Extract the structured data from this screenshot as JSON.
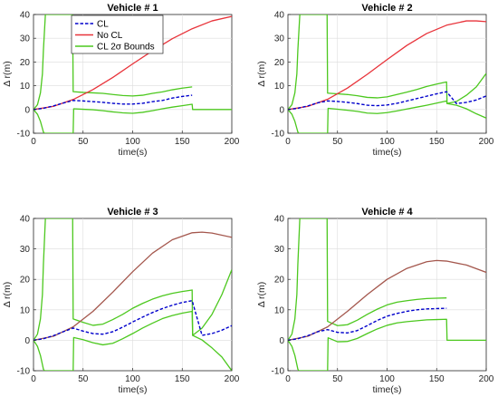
{
  "chart_data": [
    {
      "type": "line",
      "title": "Vehicle # 1",
      "xlabel": "time(s)",
      "ylabel": "Δ r(m)",
      "xlim": [
        0,
        200
      ],
      "ylim": [
        -10,
        40
      ],
      "xticks": [
        0,
        50,
        100,
        150,
        200
      ],
      "yticks": [
        -10,
        0,
        10,
        20,
        30,
        40
      ],
      "grid": true,
      "legend": {
        "placement": "top-left",
        "entries": [
          "CL",
          "No CL",
          "CL 2σ Bounds"
        ]
      },
      "series": [
        {
          "name": "CL",
          "color": "#0000cc",
          "style": "dashed",
          "x": [
            0,
            10,
            20,
            30,
            40,
            50,
            60,
            70,
            80,
            90,
            100,
            110,
            120,
            130,
            140,
            150,
            160
          ],
          "y": [
            0,
            0.5,
            1.5,
            2.7,
            3.8,
            3.6,
            3.3,
            3.0,
            2.6,
            2.3,
            2.3,
            2.6,
            3.3,
            3.8,
            4.8,
            5.5,
            6.0
          ]
        },
        {
          "name": "No CL",
          "color": "#e8333a",
          "style": "solid",
          "x": [
            0,
            20,
            40,
            60,
            80,
            100,
            120,
            140,
            160,
            180,
            200
          ],
          "y": [
            0,
            1.3,
            4.2,
            8.4,
            13.5,
            19.2,
            24.7,
            29.8,
            34.0,
            37.3,
            39.2
          ]
        },
        {
          "name": "CL 2σ Bounds (upper)",
          "color": "#4cc81e",
          "style": "solid",
          "x": [
            0,
            4,
            7,
            9,
            10,
            12,
            20,
            30,
            39,
            39.5,
            40,
            50,
            60,
            70,
            80,
            90,
            100,
            110,
            120,
            130,
            140,
            150,
            160
          ],
          "y": [
            0,
            2,
            7,
            15,
            25,
            40,
            40,
            40,
            40,
            40,
            7.5,
            7.2,
            7.0,
            6.8,
            6.3,
            5.9,
            5.7,
            6.0,
            6.8,
            7.4,
            8.3,
            9.0,
            9.5
          ]
        },
        {
          "name": "CL 2σ Bounds (lower)",
          "color": "#4cc81e",
          "style": "solid",
          "x": [
            0,
            4,
            7,
            9,
            10,
            11,
            40,
            40.5,
            50,
            60,
            70,
            80,
            90,
            100,
            110,
            120,
            130,
            140,
            150,
            160,
            160.5,
            200
          ],
          "y": [
            0,
            -2,
            -5,
            -8,
            -9.5,
            -10,
            -10,
            0.3,
            0.1,
            -0.1,
            -0.5,
            -1.0,
            -1.4,
            -1.6,
            -1.2,
            -0.5,
            0.3,
            1.0,
            1.6,
            2.2,
            0,
            0
          ]
        }
      ]
    },
    {
      "type": "line",
      "title": "Vehicle # 2",
      "xlabel": "time(s)",
      "ylabel": "Δ r(m)",
      "xlim": [
        0,
        200
      ],
      "ylim": [
        -10,
        40
      ],
      "xticks": [
        0,
        50,
        100,
        150,
        200
      ],
      "yticks": [
        -10,
        0,
        10,
        20,
        30,
        40
      ],
      "grid": true,
      "series": [
        {
          "name": "CL",
          "color": "#0000cc",
          "style": "dashed",
          "x": [
            0,
            10,
            20,
            30,
            40,
            50,
            60,
            70,
            80,
            90,
            100,
            110,
            120,
            130,
            140,
            150,
            160,
            170,
            180,
            190,
            200
          ],
          "y": [
            0,
            0.5,
            1.5,
            2.8,
            3.6,
            3.4,
            3.0,
            2.5,
            1.8,
            1.6,
            1.9,
            2.6,
            3.6,
            4.6,
            5.6,
            6.6,
            7.5,
            2.5,
            3.0,
            4.0,
            5.7
          ]
        },
        {
          "name": "No CL",
          "color": "#e8333a",
          "style": "solid",
          "x": [
            0,
            20,
            40,
            60,
            80,
            100,
            120,
            140,
            160,
            180,
            190,
            200
          ],
          "y": [
            0,
            1.3,
            4.3,
            9.0,
            14.8,
            21.0,
            27.0,
            32.0,
            35.5,
            37.3,
            37.3,
            37.0
          ]
        },
        {
          "name": "CL 2σ Bounds (upper)",
          "color": "#4cc81e",
          "style": "solid",
          "x": [
            0,
            4,
            7,
            9,
            10,
            12,
            39,
            39.5,
            40,
            50,
            60,
            70,
            80,
            90,
            100,
            110,
            120,
            130,
            140,
            150,
            160,
            160.5,
            170,
            180,
            190,
            200
          ],
          "y": [
            0,
            2,
            7,
            15,
            25,
            40,
            40,
            40,
            6.9,
            6.6,
            6.3,
            5.8,
            5.1,
            4.9,
            5.3,
            6.3,
            7.3,
            8.4,
            9.7,
            10.7,
            11.6,
            2.5,
            3.4,
            6.0,
            9.5,
            15.2
          ]
        },
        {
          "name": "CL 2σ Bounds (lower)",
          "color": "#4cc81e",
          "style": "solid",
          "x": [
            0,
            4,
            7,
            9,
            10,
            11,
            40,
            40.5,
            50,
            60,
            70,
            80,
            90,
            100,
            110,
            120,
            130,
            140,
            150,
            160,
            160.5,
            170,
            180,
            190,
            200
          ],
          "y": [
            0,
            -2,
            -5,
            -8,
            -9.5,
            -10,
            -10,
            0.5,
            0.1,
            -0.3,
            -0.8,
            -1.5,
            -1.7,
            -1.3,
            -0.6,
            0.2,
            1.0,
            1.8,
            2.7,
            3.6,
            2.5,
            1.8,
            0.3,
            -1.8,
            -3.6
          ]
        }
      ]
    },
    {
      "type": "line",
      "title": "Vehicle # 3",
      "xlabel": "time(s)",
      "ylabel": "Δ r(m)",
      "xlim": [
        0,
        200
      ],
      "ylim": [
        -10,
        40
      ],
      "xticks": [
        0,
        50,
        100,
        150,
        200
      ],
      "yticks": [
        -10,
        0,
        10,
        20,
        30,
        40
      ],
      "grid": true,
      "series": [
        {
          "name": "CL",
          "color": "#0000cc",
          "style": "dashed",
          "x": [
            0,
            10,
            20,
            30,
            40,
            50,
            60,
            70,
            80,
            90,
            100,
            110,
            120,
            130,
            140,
            150,
            160,
            170,
            180,
            190,
            200
          ],
          "y": [
            0,
            0.5,
            1.5,
            2.8,
            4.0,
            3.0,
            2.2,
            2.0,
            2.8,
            4.3,
            6.0,
            7.6,
            9.1,
            10.4,
            11.5,
            12.4,
            13.0,
            1.6,
            2.2,
            3.3,
            4.8
          ]
        },
        {
          "name": "No CL",
          "color": "#a4574d",
          "style": "solid",
          "x": [
            0,
            20,
            40,
            60,
            80,
            100,
            120,
            140,
            160,
            170,
            180,
            200
          ],
          "y": [
            0,
            1.3,
            4.4,
            9.5,
            15.8,
            22.5,
            28.6,
            33.0,
            35.3,
            35.5,
            35.2,
            33.8
          ]
        },
        {
          "name": "CL 2σ Bounds (upper)",
          "color": "#4cc81e",
          "style": "solid",
          "x": [
            0,
            4,
            7,
            9,
            10,
            12,
            39,
            39.5,
            40,
            50,
            60,
            70,
            80,
            90,
            100,
            110,
            120,
            130,
            140,
            150,
            160,
            160.5,
            170,
            180,
            190,
            200
          ],
          "y": [
            0,
            2,
            7,
            15,
            25,
            40,
            40,
            40,
            7.0,
            5.9,
            4.9,
            5.3,
            6.8,
            8.5,
            10.5,
            12.1,
            13.5,
            14.6,
            15.4,
            16.0,
            16.5,
            1.6,
            4.0,
            8.5,
            15.0,
            23.2
          ]
        },
        {
          "name": "CL 2σ Bounds (lower)",
          "color": "#4cc81e",
          "style": "solid",
          "x": [
            0,
            4,
            7,
            9,
            10,
            11,
            40,
            40.5,
            50,
            60,
            70,
            80,
            90,
            100,
            110,
            120,
            130,
            140,
            150,
            160,
            160.5,
            170,
            180,
            190,
            200
          ],
          "y": [
            0,
            -2,
            -5,
            -8,
            -9.5,
            -10,
            -10,
            0.9,
            0.2,
            -0.8,
            -1.5,
            -1.0,
            0.5,
            2.2,
            4.0,
            5.6,
            7.1,
            8.1,
            8.9,
            9.5,
            1.6,
            0.1,
            -2.5,
            -5.5,
            -10
          ]
        }
      ]
    },
    {
      "type": "line",
      "title": "Vehicle # 4",
      "xlabel": "time(s)",
      "ylabel": "Δ r(m)",
      "xlim": [
        0,
        200
      ],
      "ylim": [
        -10,
        40
      ],
      "xticks": [
        0,
        50,
        100,
        150,
        200
      ],
      "yticks": [
        -10,
        0,
        10,
        20,
        30,
        40
      ],
      "grid": true,
      "series": [
        {
          "name": "CL",
          "color": "#0000cc",
          "style": "dashed",
          "x": [
            0,
            10,
            20,
            30,
            40,
            50,
            60,
            70,
            80,
            90,
            100,
            110,
            120,
            130,
            140,
            150,
            160
          ],
          "y": [
            0,
            0.5,
            1.5,
            2.8,
            3.5,
            2.6,
            2.4,
            3.2,
            4.8,
            6.5,
            7.9,
            8.8,
            9.5,
            10.0,
            10.3,
            10.4,
            10.5
          ]
        },
        {
          "name": "No CL",
          "color": "#a4574d",
          "style": "solid",
          "x": [
            0,
            20,
            40,
            60,
            80,
            100,
            120,
            140,
            150,
            160,
            180,
            200
          ],
          "y": [
            0,
            1.3,
            4.4,
            9.5,
            15.0,
            20.0,
            23.6,
            25.8,
            26.2,
            26.0,
            24.7,
            22.3
          ]
        },
        {
          "name": "CL 2σ Bounds (upper)",
          "color": "#4cc81e",
          "style": "solid",
          "x": [
            0,
            4,
            7,
            9,
            10,
            12,
            39,
            39.5,
            40,
            50,
            60,
            70,
            80,
            90,
            100,
            110,
            120,
            130,
            140,
            150,
            160
          ],
          "y": [
            0,
            2,
            7,
            15,
            25,
            40,
            40,
            40,
            6.2,
            4.8,
            5.1,
            6.6,
            8.5,
            10.2,
            11.6,
            12.5,
            13.0,
            13.4,
            13.7,
            13.8,
            13.9
          ]
        },
        {
          "name": "CL 2σ Bounds (lower)",
          "color": "#4cc81e",
          "style": "solid",
          "x": [
            0,
            4,
            7,
            9,
            10,
            11,
            40,
            40.5,
            50,
            60,
            70,
            80,
            90,
            100,
            110,
            120,
            130,
            140,
            150,
            160,
            160.5,
            200
          ],
          "y": [
            0,
            -2,
            -5,
            -8,
            -9.5,
            -10,
            -10,
            0.8,
            -0.5,
            -0.4,
            0.6,
            2.2,
            3.7,
            4.9,
            5.7,
            6.1,
            6.4,
            6.7,
            6.8,
            6.9,
            0,
            0
          ]
        }
      ]
    }
  ]
}
